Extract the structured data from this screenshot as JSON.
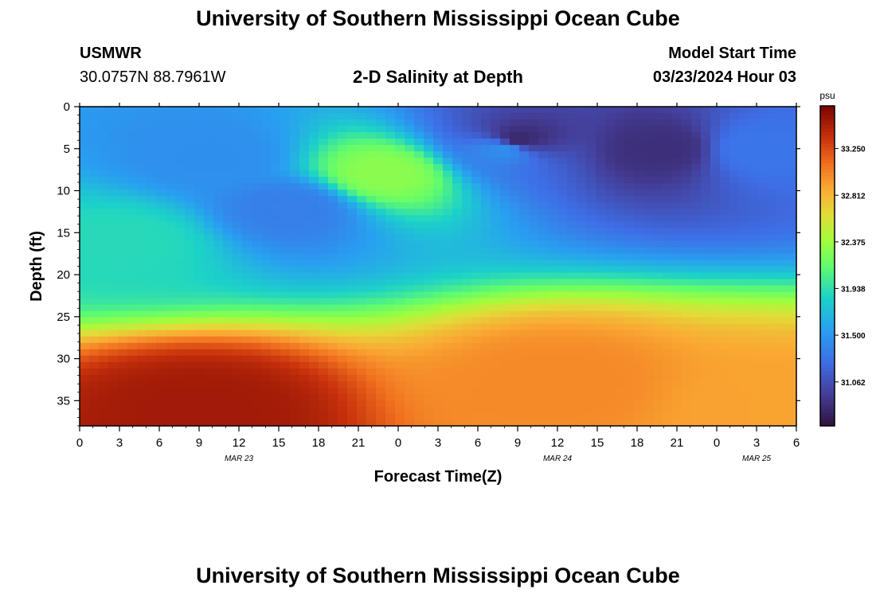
{
  "header": {
    "title": "University of Southern Mississippi Ocean Cube",
    "station": "USMWR",
    "coords": "30.0757N  88.7961W",
    "plot_title": "2-D Salinity at Depth",
    "model_label": "Model Start Time",
    "model_time": "03/23/2024 Hour 03"
  },
  "footer": {
    "title": "University of Southern Mississippi Ocean Cube"
  },
  "chart_data": {
    "type": "heatmap",
    "title": "2-D Salinity at Depth",
    "xlabel": "Forecast Time(Z)",
    "ylabel": "Depth (ft)",
    "x_ticks": [
      "0",
      "3",
      "6",
      "9",
      "12",
      "15",
      "18",
      "21",
      "0",
      "3",
      "6",
      "9",
      "12",
      "15",
      "18",
      "21",
      "0",
      "3",
      "6"
    ],
    "x_day_labels": [
      {
        "label": "MAR 23",
        "x_hour": 12
      },
      {
        "label": "MAR 24",
        "x_hour": 36
      },
      {
        "label": "MAR 25",
        "x_hour": 51
      }
    ],
    "xlim_hours": [
      0,
      54
    ],
    "y_ticks": [
      "0",
      "5",
      "10",
      "15",
      "20",
      "25",
      "30",
      "35"
    ],
    "ylim_ft": [
      0,
      38
    ],
    "colorbar": {
      "unit": "psu",
      "ticks": [
        "33.250",
        "32.812",
        "32.375",
        "31.938",
        "31.500",
        "31.062"
      ],
      "tick_values": [
        33.25,
        32.812,
        32.375,
        31.938,
        31.5,
        31.062
      ],
      "range": [
        30.65,
        33.65
      ]
    },
    "features": [
      {
        "x_hour": 3.5,
        "depth_ft": 16,
        "salinity": 31.9
      },
      {
        "x_hour": 10,
        "depth_ft": 6,
        "salinity": 31.45
      },
      {
        "x_hour": 16,
        "depth_ft": 12,
        "salinity": 31.35
      },
      {
        "x_hour": 23,
        "depth_ft": 8,
        "salinity": 32.3
      },
      {
        "x_hour": 32,
        "depth_ft": 5,
        "salinity": 31.45
      },
      {
        "x_hour": 33,
        "depth_ft": 4,
        "salinity": 30.8
      },
      {
        "x_hour": 44,
        "depth_ft": 5,
        "salinity": 30.85
      },
      {
        "x_hour": 51,
        "depth_ft": 5,
        "salinity": 31.3
      },
      {
        "x_hour": 9,
        "depth_ft": 36,
        "salinity": 33.5
      },
      {
        "x_hour": 36,
        "depth_ft": 33,
        "salinity": 33.0
      },
      {
        "x_hour": 52,
        "depth_ft": 36,
        "salinity": 32.9
      }
    ],
    "colors": {
      "frame": "#000000"
    }
  }
}
